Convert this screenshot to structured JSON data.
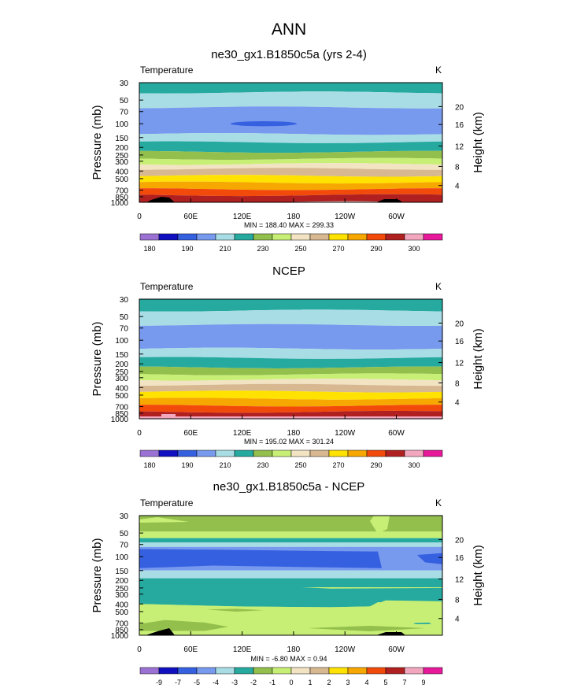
{
  "figure": {
    "title": "ANN"
  },
  "chart_data": [
    {
      "type": "heatmap",
      "title": "ne30_gx1.B1850c5a (yrs 2-4)",
      "variable": "Temperature",
      "units": "K",
      "ylabel": "Pressure (mb)",
      "ylabel_right": "Height (km)",
      "x_ticks": [
        "0",
        "60E",
        "120E",
        "180",
        "120W",
        "60W"
      ],
      "y_ticks": [
        "30",
        "50",
        "70",
        "100",
        "150",
        "200",
        "250",
        "300",
        "400",
        "500",
        "700",
        "850",
        "1000"
      ],
      "right_ticks": [
        "20",
        "16",
        "12",
        "8",
        "4"
      ],
      "stats": "MIN = 188.40  MAX = 299.33",
      "colorbar_labels": [
        "180",
        "190",
        "210",
        "230",
        "250",
        "270",
        "290",
        "300"
      ],
      "levels": [
        175,
        180,
        185,
        190,
        200,
        210,
        220,
        230,
        240,
        250,
        260,
        270,
        280,
        290,
        295,
        300
      ],
      "min": 188.4,
      "max": 299.33
    },
    {
      "type": "heatmap",
      "title": "NCEP",
      "variable": "Temperature",
      "units": "K",
      "ylabel": "Pressure (mb)",
      "ylabel_right": "Height (km)",
      "x_ticks": [
        "0",
        "60E",
        "120E",
        "180",
        "120W",
        "60W"
      ],
      "y_ticks": [
        "30",
        "50",
        "70",
        "100",
        "150",
        "200",
        "250",
        "300",
        "400",
        "500",
        "700",
        "850",
        "1000"
      ],
      "right_ticks": [
        "20",
        "16",
        "12",
        "8",
        "4"
      ],
      "stats": "MIN = 195.02  MAX = 301.24",
      "colorbar_labels": [
        "180",
        "190",
        "210",
        "230",
        "250",
        "270",
        "290",
        "300"
      ],
      "levels": [
        175,
        180,
        185,
        190,
        200,
        210,
        220,
        230,
        240,
        250,
        260,
        270,
        280,
        290,
        295,
        300
      ],
      "min": 195.02,
      "max": 301.24
    },
    {
      "type": "heatmap",
      "title": "ne30_gx1.B1850c5a - NCEP",
      "variable": "Temperature",
      "units": "K",
      "ylabel": "Pressure (mb)",
      "ylabel_right": "Height (km)",
      "x_ticks": [
        "0",
        "60E",
        "120E",
        "180",
        "120W",
        "60W"
      ],
      "y_ticks": [
        "30",
        "50",
        "70",
        "100",
        "150",
        "200",
        "250",
        "300",
        "400",
        "500",
        "700",
        "850",
        "1000"
      ],
      "right_ticks": [
        "20",
        "16",
        "12",
        "8",
        "4"
      ],
      "stats": "MIN = -6.80  MAX =  0.94",
      "colorbar_labels": [
        "-9",
        "-7",
        "-5",
        "-4",
        "-3",
        "-2",
        "-1",
        "0",
        "1",
        "2",
        "3",
        "4",
        "5",
        "7",
        "9"
      ],
      "levels": [
        -9,
        -7,
        -5,
        -4,
        -3,
        -2,
        -1,
        0,
        1,
        2,
        3,
        4,
        5,
        7,
        9
      ],
      "min": -6.8,
      "max": 0.94
    }
  ],
  "palette": [
    "#9b72d3",
    "#1010c0",
    "#3560e0",
    "#7799ee",
    "#a9dde5",
    "#26aaa0",
    "#93bf4c",
    "#c8ef75",
    "#f2e3c3",
    "#d8b890",
    "#ffe200",
    "#f7a800",
    "#f24a0a",
    "#b02020",
    "#f2a7bf",
    "#e7189a"
  ]
}
